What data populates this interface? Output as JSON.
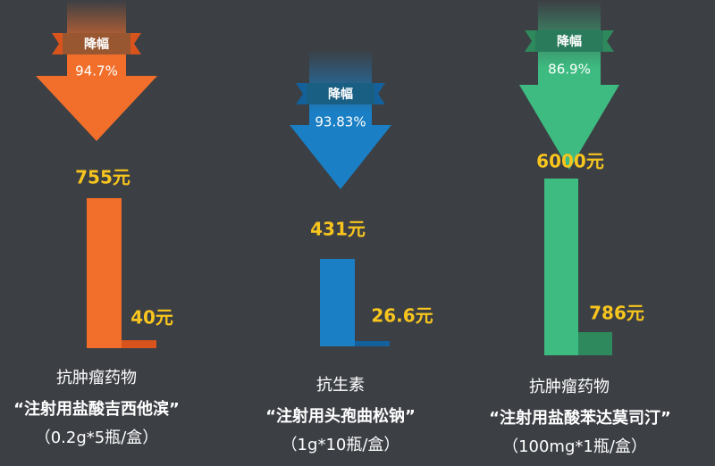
{
  "chart_data": {
    "type": "bar",
    "badge": "降幅",
    "panels": [
      {
        "category": "抗肿瘤药物",
        "drug": "“注射用盐酸吉西他滨”",
        "spec": "（0.2g*5瓶/盒）",
        "drop": 94.7,
        "drop_label": "94.7%",
        "values": [
          755,
          40
        ],
        "value_labels": [
          "755元",
          "40元"
        ],
        "color": "#f26f2b",
        "color2": "#d9541d"
      },
      {
        "category": "抗生素",
        "drug": "“注射用头孢曲松钠”",
        "spec": "（1g*10瓶/盒）",
        "drop": 93.83,
        "drop_label": "93.83%",
        "values": [
          431,
          26.6
        ],
        "value_labels": [
          "431元",
          "26.6元"
        ],
        "color": "#1a7fc4",
        "color2": "#14609a"
      },
      {
        "category": "抗肿瘤药物",
        "drug": "“注射用盐酸苯达莫司汀”",
        "spec": "（100mg*1瓶/盒）",
        "drop": 86.9,
        "drop_label": "86.9%",
        "values": [
          6000,
          786
        ],
        "value_labels": [
          "6000元",
          "786元"
        ],
        "color": "#3dbb80",
        "color2": "#2e8a5c"
      }
    ]
  }
}
